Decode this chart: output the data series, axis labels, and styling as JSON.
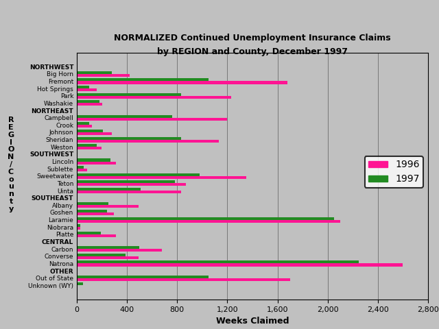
{
  "title_line1": "NORMALIZED Continued Unemployment Insurance Claims",
  "title_line2": "by REGION and County, December 1997",
  "xlabel_text": "Weeks Claimed",
  "categories": [
    "NORTHWEST",
    "Big Horn",
    "Fremont",
    "Hot Springs",
    "Park",
    "Washakie",
    "NORTHEAST",
    "Campbell",
    "Crook",
    "Johnson",
    "Sheridan",
    "Weston",
    "SOUTHWEST",
    "Lincoln",
    "Sublette",
    "Sweetwater",
    "Teton",
    "Uinta",
    "SOUTHEAST",
    "Albany",
    "Goshen",
    "Laramie",
    "Niobrara",
    "Platte",
    "CENTRAL",
    "Carbon",
    "Converse",
    "Natrona",
    "OTHER",
    "Out of State",
    "Unknown (WY)"
  ],
  "values_1996": [
    0,
    420,
    1680,
    160,
    1230,
    200,
    0,
    1200,
    120,
    280,
    1130,
    195,
    0,
    310,
    80,
    1350,
    870,
    830,
    0,
    490,
    295,
    2100,
    30,
    310,
    0,
    680,
    490,
    2600,
    0,
    1700,
    0
  ],
  "values_1997": [
    0,
    280,
    1050,
    100,
    830,
    180,
    0,
    760,
    100,
    210,
    830,
    160,
    0,
    270,
    55,
    980,
    780,
    510,
    0,
    250,
    240,
    2050,
    30,
    190,
    0,
    500,
    390,
    2250,
    0,
    1050,
    50
  ],
  "color_1996": "#FF1493",
  "color_1997": "#228B22",
  "background_color": "#C0C0C0",
  "xlim": [
    0,
    2800
  ],
  "xticks": [
    0,
    400,
    800,
    1200,
    1600,
    2000,
    2400,
    2800
  ],
  "xtick_labels": [
    "0",
    "400",
    "800",
    "1,200",
    "1,600",
    "2,000",
    "2,400",
    "2,800"
  ],
  "legend_1996": "1996",
  "legend_1997": "1997",
  "region_labels": [
    "NORTHWEST",
    "NORTHEAST",
    "SOUTHWEST",
    "SOUTHEAST",
    "CENTRAL",
    "OTHER"
  ],
  "ylabel_letters": "R\nE\nG\nI\nO\nN\n/\nC\no\nu\nn\nt\ny"
}
